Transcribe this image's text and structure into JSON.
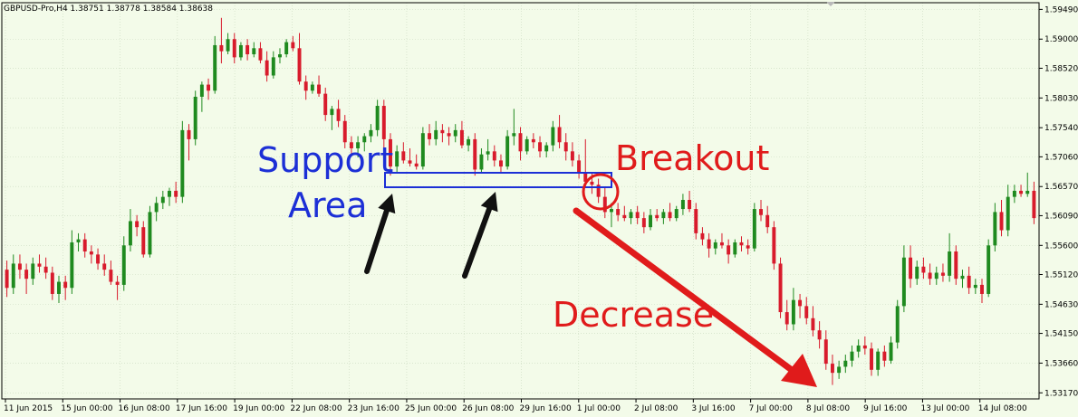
{
  "chart_data": {
    "type": "candlestick",
    "title": "GBPUSD-Pro,H4  1.38751 1.38778 1.38584 1.38638",
    "ylim": [
      1.5307,
      1.596
    ],
    "y_ticks": [
      "1.59490",
      "1.59000",
      "1.58520",
      "1.58030",
      "1.57540",
      "1.57060",
      "1.56570",
      "1.56090",
      "1.55600",
      "1.55120",
      "1.54630",
      "1.54150",
      "1.53660",
      "1.53170"
    ],
    "x_ticks": [
      "11 Jun 2015",
      "15 Jun 00:00",
      "16 Jun 08:00",
      "17 Jun 16:00",
      "19 Jun 00:00",
      "22 Jun 08:00",
      "23 Jun 16:00",
      "25 Jun 00:00",
      "26 Jun 08:00",
      "29 Jun 16:00",
      "1 Jul 00:00",
      "2 Jul 08:00",
      "3 Jul 16:00",
      "7 Jul 00:00",
      "8 Jul 08:00",
      "9 Jul 16:00",
      "13 Jul 00:00",
      "14 Jul 08:00"
    ],
    "colors": {
      "bull": "#1f8a1f",
      "bear": "#d81b2c",
      "grid": "#c9d9be",
      "background": "#f3fbe9"
    },
    "annotations": {
      "support_line1": "Support",
      "support_line2": "Area",
      "breakout": "Breakout",
      "decrease": "Decrease",
      "support_color": "#1c2fd6",
      "breakout_color": "#e01b1b",
      "arrow_color": "#111111"
    },
    "candles": [
      [
        1.552,
        1.5535,
        1.5475,
        1.549
      ],
      [
        1.549,
        1.5545,
        1.548,
        1.553
      ],
      [
        1.553,
        1.5545,
        1.5505,
        1.552
      ],
      [
        1.552,
        1.553,
        1.548,
        1.5505
      ],
      [
        1.5505,
        1.554,
        1.5495,
        1.553
      ],
      [
        1.553,
        1.5545,
        1.5515,
        1.5525
      ],
      [
        1.5525,
        1.554,
        1.5505,
        1.5515
      ],
      [
        1.5515,
        1.5525,
        1.547,
        1.548
      ],
      [
        1.548,
        1.551,
        1.5465,
        1.55
      ],
      [
        1.55,
        1.551,
        1.547,
        1.549
      ],
      [
        1.549,
        1.5585,
        1.548,
        1.5565
      ],
      [
        1.5565,
        1.558,
        1.555,
        1.557
      ],
      [
        1.557,
        1.558,
        1.554,
        1.555
      ],
      [
        1.555,
        1.556,
        1.553,
        1.5545
      ],
      [
        1.5545,
        1.5555,
        1.552,
        1.553
      ],
      [
        1.553,
        1.5545,
        1.551,
        1.552
      ],
      [
        1.552,
        1.5535,
        1.5495,
        1.55
      ],
      [
        1.55,
        1.551,
        1.547,
        1.5495
      ],
      [
        1.5495,
        1.5575,
        1.5485,
        1.556
      ],
      [
        1.556,
        1.562,
        1.555,
        1.56
      ],
      [
        1.56,
        1.561,
        1.5575,
        1.559
      ],
      [
        1.559,
        1.56,
        1.554,
        1.5545
      ],
      [
        1.5545,
        1.5625,
        1.554,
        1.5615
      ],
      [
        1.5615,
        1.564,
        1.56,
        1.563
      ],
      [
        1.563,
        1.565,
        1.562,
        1.564
      ],
      [
        1.564,
        1.5655,
        1.5625,
        1.565
      ],
      [
        1.565,
        1.5665,
        1.563,
        1.564
      ],
      [
        1.564,
        1.5765,
        1.563,
        1.575
      ],
      [
        1.575,
        1.576,
        1.57,
        1.5735
      ],
      [
        1.5735,
        1.5815,
        1.5725,
        1.5805
      ],
      [
        1.5805,
        1.583,
        1.578,
        1.5825
      ],
      [
        1.5825,
        1.5835,
        1.58,
        1.5815
      ],
      [
        1.5815,
        1.5905,
        1.581,
        1.589
      ],
      [
        1.589,
        1.5935,
        1.586,
        1.588
      ],
      [
        1.588,
        1.591,
        1.5875,
        1.59
      ],
      [
        1.59,
        1.591,
        1.586,
        1.587
      ],
      [
        1.587,
        1.5895,
        1.5865,
        1.589
      ],
      [
        1.589,
        1.59,
        1.5865,
        1.5875
      ],
      [
        1.5875,
        1.5895,
        1.587,
        1.5885
      ],
      [
        1.5885,
        1.5895,
        1.586,
        1.5865
      ],
      [
        1.5865,
        1.588,
        1.583,
        1.584
      ],
      [
        1.584,
        1.588,
        1.5835,
        1.587
      ],
      [
        1.587,
        1.5885,
        1.586,
        1.5875
      ],
      [
        1.5875,
        1.59,
        1.587,
        1.5895
      ],
      [
        1.5895,
        1.5905,
        1.588,
        1.5885
      ],
      [
        1.5885,
        1.591,
        1.5825,
        1.583
      ],
      [
        1.583,
        1.584,
        1.58,
        1.5815
      ],
      [
        1.5815,
        1.583,
        1.581,
        1.5825
      ],
      [
        1.5825,
        1.584,
        1.5805,
        1.581
      ],
      [
        1.581,
        1.582,
        1.5765,
        1.5775
      ],
      [
        1.5775,
        1.579,
        1.575,
        1.5785
      ],
      [
        1.5785,
        1.58,
        1.5755,
        1.5765
      ],
      [
        1.5765,
        1.5775,
        1.572,
        1.573
      ],
      [
        1.573,
        1.574,
        1.571,
        1.572
      ],
      [
        1.572,
        1.574,
        1.5705,
        1.573
      ],
      [
        1.573,
        1.5745,
        1.5715,
        1.574
      ],
      [
        1.574,
        1.576,
        1.573,
        1.575
      ],
      [
        1.575,
        1.58,
        1.574,
        1.579
      ],
      [
        1.579,
        1.58,
        1.572,
        1.5735
      ],
      [
        1.5735,
        1.5745,
        1.5675,
        1.569
      ],
      [
        1.569,
        1.5725,
        1.568,
        1.5715
      ],
      [
        1.5715,
        1.573,
        1.5695,
        1.57
      ],
      [
        1.57,
        1.572,
        1.569,
        1.5695
      ],
      [
        1.5695,
        1.571,
        1.5685,
        1.569
      ],
      [
        1.569,
        1.5755,
        1.5685,
        1.5745
      ],
      [
        1.5745,
        1.576,
        1.5725,
        1.5735
      ],
      [
        1.5735,
        1.5765,
        1.5725,
        1.575
      ],
      [
        1.575,
        1.576,
        1.573,
        1.5745
      ],
      [
        1.5745,
        1.5755,
        1.5725,
        1.574
      ],
      [
        1.574,
        1.576,
        1.573,
        1.575
      ],
      [
        1.575,
        1.5765,
        1.572,
        1.5725
      ],
      [
        1.5725,
        1.574,
        1.5715,
        1.5735
      ],
      [
        1.5735,
        1.5745,
        1.5675,
        1.5685
      ],
      [
        1.5685,
        1.572,
        1.568,
        1.571
      ],
      [
        1.571,
        1.5735,
        1.57,
        1.5715
      ],
      [
        1.5715,
        1.5725,
        1.569,
        1.57
      ],
      [
        1.57,
        1.571,
        1.568,
        1.569
      ],
      [
        1.569,
        1.575,
        1.5685,
        1.574
      ],
      [
        1.574,
        1.5785,
        1.5725,
        1.5745
      ],
      [
        1.5745,
        1.5755,
        1.57,
        1.5715
      ],
      [
        1.5715,
        1.574,
        1.571,
        1.5735
      ],
      [
        1.5735,
        1.5745,
        1.572,
        1.573
      ],
      [
        1.573,
        1.574,
        1.5705,
        1.5715
      ],
      [
        1.5715,
        1.573,
        1.5705,
        1.5725
      ],
      [
        1.5725,
        1.5765,
        1.5715,
        1.5755
      ],
      [
        1.5755,
        1.5775,
        1.572,
        1.573
      ],
      [
        1.573,
        1.5745,
        1.57,
        1.5715
      ],
      [
        1.5715,
        1.573,
        1.569,
        1.57
      ],
      [
        1.57,
        1.571,
        1.567,
        1.568
      ],
      [
        1.568,
        1.5735,
        1.5655,
        1.5665
      ],
      [
        1.5665,
        1.568,
        1.5645,
        1.566
      ],
      [
        1.566,
        1.567,
        1.563,
        1.564
      ],
      [
        1.564,
        1.5655,
        1.5605,
        1.5615
      ],
      [
        1.5615,
        1.563,
        1.559,
        1.562
      ],
      [
        1.562,
        1.563,
        1.56,
        1.561
      ],
      [
        1.561,
        1.5625,
        1.56,
        1.5605
      ],
      [
        1.5605,
        1.562,
        1.5595,
        1.5615
      ],
      [
        1.5615,
        1.5625,
        1.5595,
        1.5605
      ],
      [
        1.5605,
        1.5615,
        1.558,
        1.559
      ],
      [
        1.559,
        1.562,
        1.5585,
        1.561
      ],
      [
        1.561,
        1.562,
        1.56,
        1.5605
      ],
      [
        1.5605,
        1.562,
        1.5595,
        1.5615
      ],
      [
        1.5615,
        1.563,
        1.56,
        1.5605
      ],
      [
        1.5605,
        1.5625,
        1.56,
        1.562
      ],
      [
        1.562,
        1.5645,
        1.561,
        1.5635
      ],
      [
        1.5635,
        1.565,
        1.5615,
        1.562
      ],
      [
        1.562,
        1.563,
        1.557,
        1.558
      ],
      [
        1.558,
        1.559,
        1.556,
        1.557
      ],
      [
        1.557,
        1.558,
        1.554,
        1.5555
      ],
      [
        1.5555,
        1.557,
        1.5545,
        1.5565
      ],
      [
        1.5565,
        1.558,
        1.5555,
        1.556
      ],
      [
        1.556,
        1.557,
        1.553,
        1.5545
      ],
      [
        1.5545,
        1.557,
        1.554,
        1.5565
      ],
      [
        1.5565,
        1.5575,
        1.555,
        1.556
      ],
      [
        1.556,
        1.557,
        1.5545,
        1.5555
      ],
      [
        1.5555,
        1.563,
        1.555,
        1.562
      ],
      [
        1.562,
        1.5635,
        1.56,
        1.561
      ],
      [
        1.561,
        1.5625,
        1.558,
        1.559
      ],
      [
        1.559,
        1.56,
        1.552,
        1.553
      ],
      [
        1.553,
        1.554,
        1.544,
        1.545
      ],
      [
        1.545,
        1.547,
        1.542,
        1.543
      ],
      [
        1.543,
        1.549,
        1.542,
        1.547
      ],
      [
        1.547,
        1.548,
        1.544,
        1.546
      ],
      [
        1.546,
        1.5475,
        1.543,
        1.544
      ],
      [
        1.544,
        1.546,
        1.541,
        1.542
      ],
      [
        1.542,
        1.5435,
        1.539,
        1.5405
      ],
      [
        1.5405,
        1.542,
        1.5355,
        1.5365
      ],
      [
        1.5365,
        1.538,
        1.533,
        1.535
      ],
      [
        1.535,
        1.537,
        1.534,
        1.536
      ],
      [
        1.536,
        1.538,
        1.535,
        1.537
      ],
      [
        1.537,
        1.5395,
        1.536,
        1.5385
      ],
      [
        1.5385,
        1.5405,
        1.5375,
        1.5395
      ],
      [
        1.5395,
        1.541,
        1.538,
        1.539
      ],
      [
        1.539,
        1.54,
        1.5345,
        1.5355
      ],
      [
        1.5355,
        1.539,
        1.5345,
        1.5385
      ],
      [
        1.5385,
        1.5395,
        1.536,
        1.537
      ],
      [
        1.537,
        1.541,
        1.5365,
        1.54
      ],
      [
        1.54,
        1.547,
        1.539,
        1.546
      ],
      [
        1.546,
        1.556,
        1.545,
        1.554
      ],
      [
        1.554,
        1.556,
        1.549,
        1.5505
      ],
      [
        1.5505,
        1.5535,
        1.5495,
        1.5525
      ],
      [
        1.5525,
        1.554,
        1.5505,
        1.5515
      ],
      [
        1.5515,
        1.553,
        1.5495,
        1.5505
      ],
      [
        1.5505,
        1.5525,
        1.5495,
        1.5515
      ],
      [
        1.5515,
        1.553,
        1.55,
        1.551
      ],
      [
        1.551,
        1.558,
        1.55,
        1.555
      ],
      [
        1.555,
        1.556,
        1.5495,
        1.5505
      ],
      [
        1.5505,
        1.552,
        1.549,
        1.551
      ],
      [
        1.551,
        1.5525,
        1.548,
        1.549
      ],
      [
        1.549,
        1.5505,
        1.548,
        1.5495
      ],
      [
        1.5495,
        1.5505,
        1.5465,
        1.548
      ],
      [
        1.548,
        1.557,
        1.5475,
        1.556
      ],
      [
        1.556,
        1.563,
        1.555,
        1.5615
      ],
      [
        1.5615,
        1.5635,
        1.5575,
        1.5585
      ],
      [
        1.5585,
        1.566,
        1.5575,
        1.564
      ],
      [
        1.564,
        1.566,
        1.563,
        1.565
      ],
      [
        1.565,
        1.566,
        1.564,
        1.5645
      ],
      [
        1.5645,
        1.568,
        1.564,
        1.565
      ],
      [
        1.565,
        1.5665,
        1.5595,
        1.5605
      ]
    ]
  }
}
